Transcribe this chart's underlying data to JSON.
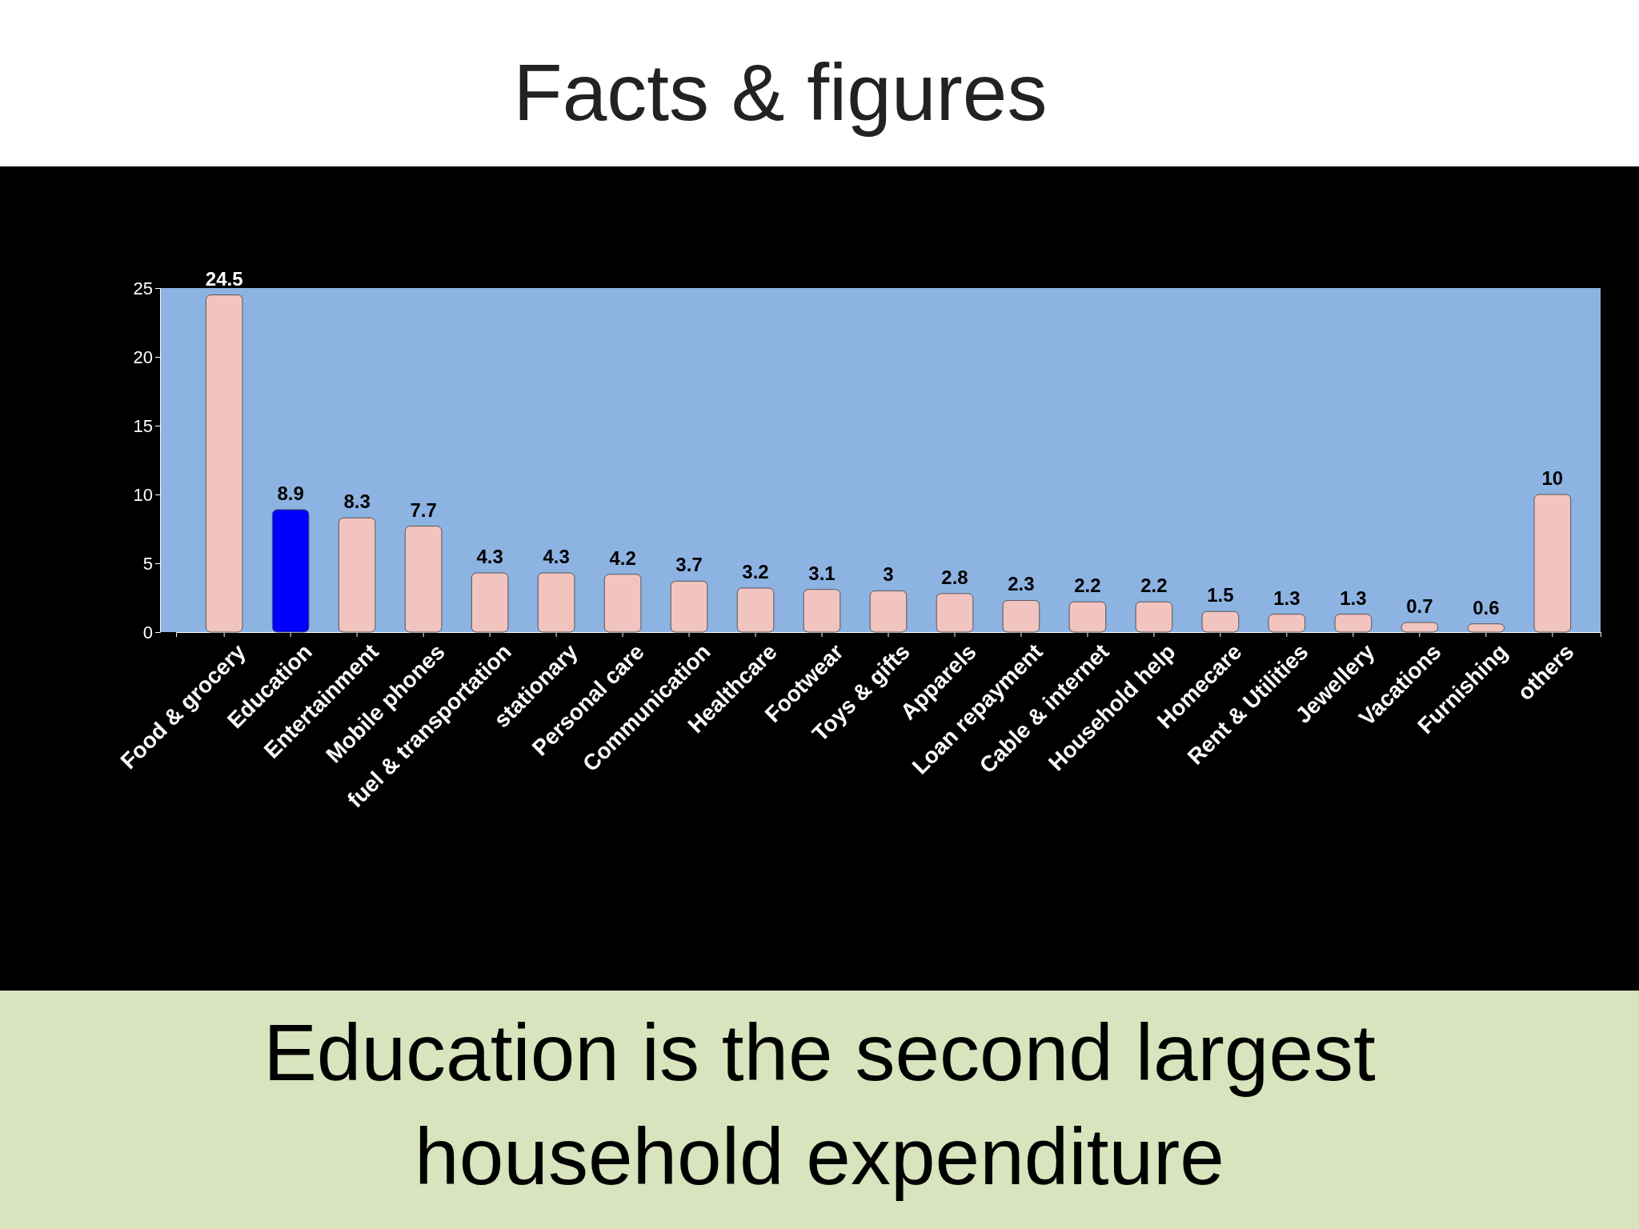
{
  "chart_data": {
    "type": "bar",
    "title": "Facts & figures",
    "categories": [
      "Food & grocery",
      "Education",
      "Entertainment",
      "Mobile phones",
      "fuel & transportation",
      "stationary",
      "Personal care",
      "Communication",
      "Healthcare",
      "Footwear",
      "Toys & gifts",
      "Apparels",
      "Loan repayment",
      "Cable & internet",
      "Household help",
      "Homecare",
      "Rent & Utilities",
      "Jewellery",
      "Vacations",
      "Furnishing",
      "others"
    ],
    "values": [
      24.5,
      8.9,
      8.3,
      7.7,
      4.3,
      4.3,
      4.2,
      3.7,
      3.2,
      3.1,
      3,
      2.8,
      2.3,
      2.2,
      2.2,
      1.5,
      1.3,
      1.3,
      0.7,
      0.6,
      10
    ],
    "colors": [
      "#f2c4c0",
      "#0000ff",
      "#f2c4c0",
      "#f2c4c0",
      "#f2c4c0",
      "#f2c4c0",
      "#f2c4c0",
      "#f2c4c0",
      "#f2c4c0",
      "#f2c4c0",
      "#f2c4c0",
      "#f2c4c0",
      "#f2c4c0",
      "#f2c4c0",
      "#f2c4c0",
      "#f2c4c0",
      "#f2c4c0",
      "#f2c4c0",
      "#f2c4c0",
      "#f2c4c0",
      "#f2c4c0"
    ],
    "ylim": [
      0,
      25
    ],
    "yticks": [
      0,
      5,
      10,
      15,
      20,
      25
    ],
    "data_labels": true,
    "grid": false,
    "annotations": [
      "Education is the second largest household expenditure"
    ]
  }
}
